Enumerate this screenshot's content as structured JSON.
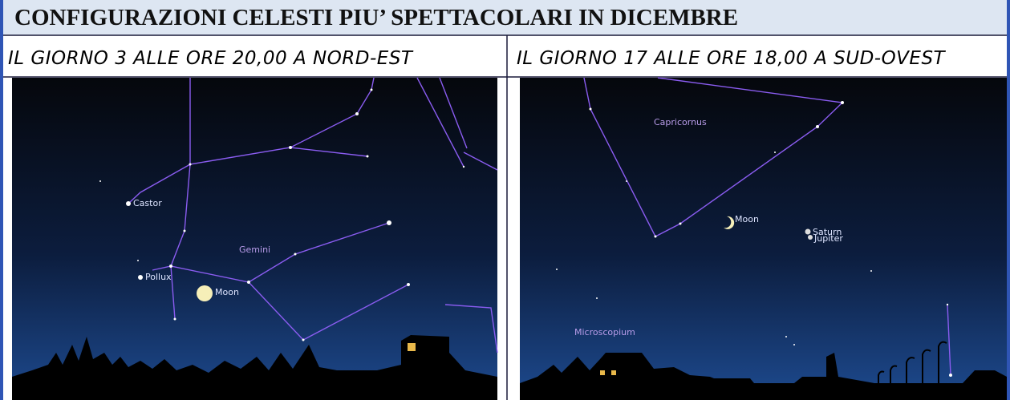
{
  "header": {
    "title": "CONFIGURAZIONI CELESTI PIU’ SPETTACOLARI IN DICEMBRE"
  },
  "columns": [
    {
      "heading": "IL GIORNO 3 ALLE ORE 20,00 A NORD-EST",
      "labels": [
        "Castor",
        "Gemini",
        "Pollux",
        "Moon"
      ]
    },
    {
      "heading": "IL GIORNO 17 ALLE ORE 18,00 A SUD-OVEST",
      "labels": [
        "Capricornus",
        "Moon",
        "Saturn",
        "Jupiter",
        "Microscopium"
      ]
    }
  ]
}
